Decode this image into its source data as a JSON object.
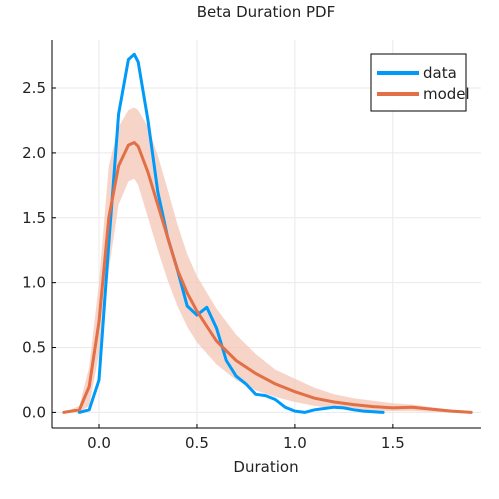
{
  "chart_data": {
    "type": "line",
    "title": "Beta Duration PDF",
    "xlabel": "Duration",
    "ylabel": "",
    "xlim": [
      -0.24,
      1.95
    ],
    "ylim": [
      -0.12,
      2.87
    ],
    "xticks": [
      0.0,
      0.5,
      1.0,
      1.5
    ],
    "xtick_labels": [
      "0.0",
      "0.5",
      "1.0",
      "1.5"
    ],
    "yticks": [
      0.0,
      0.5,
      1.0,
      1.5,
      2.0,
      2.5
    ],
    "ytick_labels": [
      "0.0",
      "0.5",
      "1.0",
      "1.5",
      "2.0",
      "2.5"
    ],
    "grid": true,
    "legend_position": "top-right",
    "colors": {
      "data": "#009af9",
      "model": "#e26f46",
      "band": "#f3c7b6"
    },
    "series": [
      {
        "name": "data",
        "x": [
          -0.1,
          -0.05,
          0.0,
          0.05,
          0.1,
          0.15,
          0.18,
          0.2,
          0.25,
          0.3,
          0.35,
          0.4,
          0.45,
          0.5,
          0.55,
          0.6,
          0.65,
          0.7,
          0.75,
          0.8,
          0.85,
          0.9,
          0.95,
          1.0,
          1.05,
          1.1,
          1.15,
          1.2,
          1.25,
          1.3,
          1.35,
          1.4,
          1.45
        ],
        "y": [
          0.0,
          0.02,
          0.25,
          1.3,
          2.3,
          2.72,
          2.76,
          2.7,
          2.25,
          1.7,
          1.35,
          1.1,
          0.82,
          0.75,
          0.81,
          0.65,
          0.4,
          0.28,
          0.22,
          0.14,
          0.13,
          0.1,
          0.04,
          0.01,
          0.0,
          0.02,
          0.03,
          0.04,
          0.035,
          0.02,
          0.01,
          0.005,
          0.0
        ]
      },
      {
        "name": "model",
        "x": [
          -0.18,
          -0.1,
          -0.05,
          0.0,
          0.05,
          0.1,
          0.15,
          0.18,
          0.2,
          0.25,
          0.3,
          0.35,
          0.4,
          0.45,
          0.5,
          0.6,
          0.7,
          0.8,
          0.9,
          1.0,
          1.1,
          1.2,
          1.3,
          1.4,
          1.5,
          1.6,
          1.7,
          1.8,
          1.9
        ],
        "y": [
          0.0,
          0.02,
          0.2,
          0.7,
          1.5,
          1.9,
          2.06,
          2.08,
          2.05,
          1.85,
          1.6,
          1.35,
          1.1,
          0.92,
          0.78,
          0.55,
          0.4,
          0.3,
          0.22,
          0.16,
          0.11,
          0.08,
          0.06,
          0.045,
          0.035,
          0.04,
          0.025,
          0.01,
          0.0
        ]
      }
    ],
    "band": {
      "x": [
        -0.18,
        -0.1,
        -0.05,
        0.0,
        0.05,
        0.1,
        0.15,
        0.18,
        0.2,
        0.25,
        0.3,
        0.35,
        0.4,
        0.45,
        0.5,
        0.6,
        0.7,
        0.8,
        0.9,
        1.0,
        1.1,
        1.2,
        1.3,
        1.4,
        1.5,
        1.6,
        1.7,
        1.8,
        1.9
      ],
      "lower": [
        0.0,
        0.0,
        0.05,
        0.45,
        1.1,
        1.6,
        1.78,
        1.8,
        1.75,
        1.5,
        1.25,
        1.02,
        0.82,
        0.66,
        0.54,
        0.37,
        0.25,
        0.17,
        0.12,
        0.08,
        0.05,
        0.03,
        0.02,
        0.01,
        0.01,
        0.01,
        0.005,
        0.0,
        0.0
      ],
      "upper": [
        0.0,
        0.05,
        0.35,
        1.0,
        1.9,
        2.2,
        2.33,
        2.35,
        2.33,
        2.2,
        1.98,
        1.72,
        1.45,
        1.22,
        1.05,
        0.8,
        0.6,
        0.45,
        0.33,
        0.26,
        0.19,
        0.14,
        0.11,
        0.09,
        0.07,
        0.06,
        0.04,
        0.02,
        0.0
      ]
    }
  }
}
